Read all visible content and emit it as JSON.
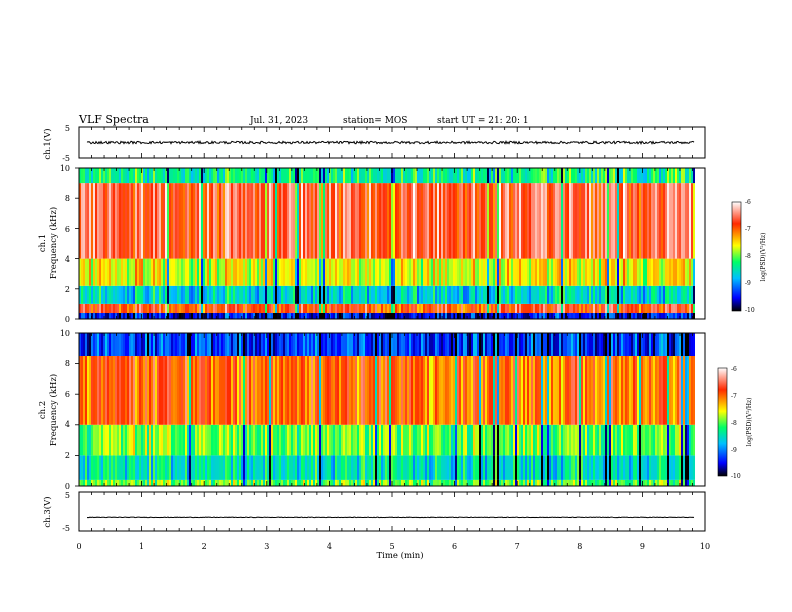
{
  "header": {
    "title": "VLF Spectra",
    "date": "Jul. 31, 2023",
    "station": "station= MOS",
    "start_time": "start UT = 21: 20: 1"
  },
  "chart_data": [
    {
      "type": "line",
      "panel": "ch1-waveform",
      "ylabel": "ch.1(V)",
      "ylim": [
        -5,
        5
      ],
      "y_ticks": [
        "5",
        "-5"
      ],
      "baseline_value": 0
    },
    {
      "type": "heatmap",
      "panel": "ch1-spectrogram",
      "ylabel_top": "ch.1",
      "ylabel": "Frequency (kHz)",
      "ylim": [
        0,
        10
      ],
      "y_ticks": [
        "0",
        "2",
        "4",
        "6",
        "8",
        "10"
      ],
      "colorbar": {
        "label": "log(PSD)(V²/Hz)",
        "ticks": [
          "-6",
          "-7",
          "-8",
          "-9",
          "-10"
        ],
        "range": [
          -10,
          -6
        ]
      },
      "bands_khz": [
        {
          "from": 0,
          "to": 0.4,
          "level": -9.5
        },
        {
          "from": 0.4,
          "to": 1.0,
          "level": -6.8
        },
        {
          "from": 1.0,
          "to": 2.2,
          "level": -8.6
        },
        {
          "from": 2.2,
          "to": 4.0,
          "level": -7.6
        },
        {
          "from": 4.0,
          "to": 9.0,
          "level": -6.6
        },
        {
          "from": 9.0,
          "to": 10,
          "level": -8.3
        }
      ]
    },
    {
      "type": "heatmap",
      "panel": "ch2-spectrogram",
      "ylabel_top": "ch.2",
      "ylabel": "Frequency (kHz)",
      "ylim": [
        0,
        10
      ],
      "y_ticks": [
        "0",
        "2",
        "4",
        "6",
        "8",
        "10"
      ],
      "colorbar": {
        "label": "log(PSD)(V²/Hz)",
        "ticks": [
          "-6",
          "-7",
          "-8",
          "-9",
          "-10"
        ],
        "range": [
          -10,
          -6
        ]
      },
      "bands_khz": [
        {
          "from": 0,
          "to": 0.4,
          "level": -8.0
        },
        {
          "from": 0.4,
          "to": 2.0,
          "level": -8.5
        },
        {
          "from": 2.0,
          "to": 4.0,
          "level": -8.0
        },
        {
          "from": 4.0,
          "to": 8.5,
          "level": -7.0
        },
        {
          "from": 8.5,
          "to": 10,
          "level": -9.3
        }
      ]
    },
    {
      "type": "line",
      "panel": "ch3-waveform",
      "ylabel": "ch.3(V)",
      "ylim": [
        -5,
        5
      ],
      "y_ticks": [
        "5",
        "-5"
      ],
      "baseline_value": -1.5
    }
  ],
  "xaxis": {
    "label": "Time (min)",
    "range": [
      0,
      10
    ],
    "data_end": 9.83,
    "ticks": [
      "0",
      "1",
      "2",
      "3",
      "4",
      "5",
      "6",
      "7",
      "8",
      "9",
      "10"
    ]
  }
}
